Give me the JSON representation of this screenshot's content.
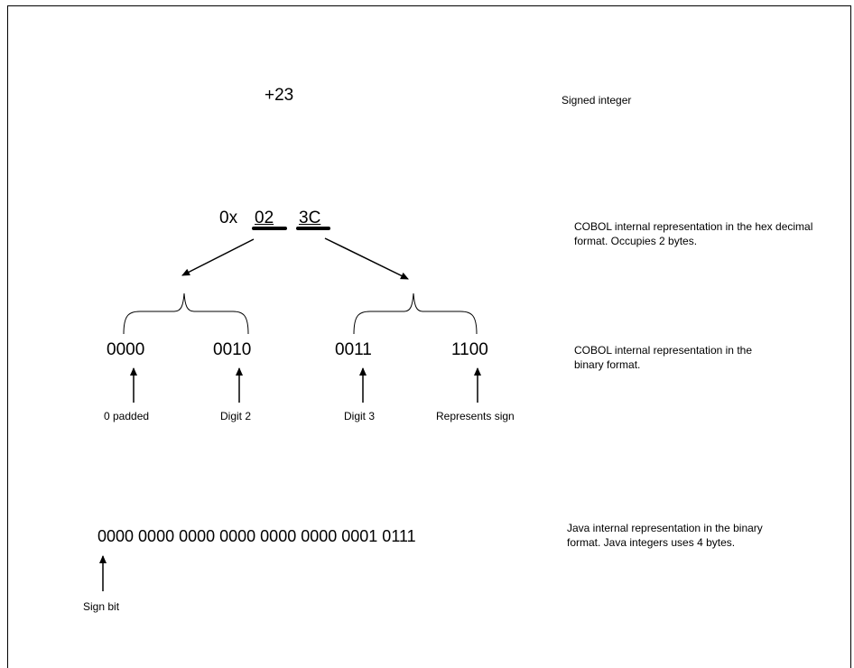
{
  "signed_integer": {
    "value": "+23",
    "label": "Signed integer"
  },
  "hex": {
    "prefix": "0x",
    "bytes": [
      "02",
      "3C"
    ],
    "description": "COBOL internal representation in the hex decimal format. Occupies 2 bytes."
  },
  "binary": {
    "nibbles": [
      "0000",
      "0010",
      "0011",
      "1100"
    ],
    "annotations": [
      "0 padded",
      "Digit 2",
      "Digit 3",
      "Represents sign"
    ],
    "description": "COBOL internal representation in the binary format."
  },
  "java": {
    "bits": "0000 0000 0000 0000 0000 0000 0001 0111",
    "sign_label": "Sign bit",
    "description": "Java internal representation in the binary format. Java integers uses 4 bytes."
  }
}
